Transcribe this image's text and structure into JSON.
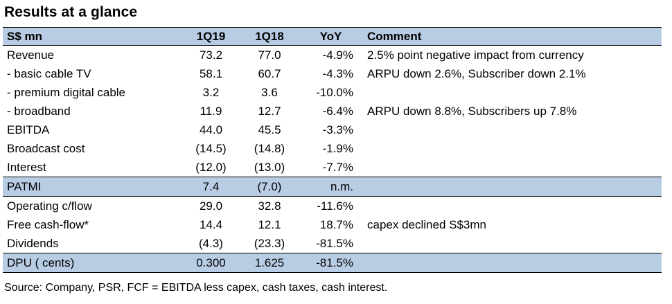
{
  "title": "Results at a glance",
  "table": {
    "headers": [
      "S$ mn",
      "1Q19",
      "1Q18",
      "YoY",
      "Comment"
    ],
    "rows": [
      {
        "label": "Revenue",
        "q19": "73.2",
        "q18": "77.0",
        "yoy": "-4.9%",
        "comment": "2.5% point negative impact from currency"
      },
      {
        "label": " - basic cable TV",
        "q19": "58.1",
        "q18": "60.7",
        "yoy": "-4.3%",
        "comment": "ARPU down 2.6%, Subscriber down 2.1%"
      },
      {
        "label": " - premium digital cable",
        "q19": "3.2",
        "q18": "3.6",
        "yoy": "-10.0%",
        "comment": ""
      },
      {
        "label": " - broadband",
        "q19": "11.9",
        "q18": "12.7",
        "yoy": "-6.4%",
        "comment": "ARPU down 8.8%, Subscribers up 7.8%"
      },
      {
        "label": "EBITDA",
        "q19": "44.0",
        "q18": "45.5",
        "yoy": "-3.3%",
        "comment": ""
      },
      {
        "label": "Broadcast cost",
        "q19": "(14.5)",
        "q18": "(14.8)",
        "yoy": "-1.9%",
        "comment": ""
      },
      {
        "label": "Interest",
        "q19": "(12.0)",
        "q18": "(13.0)",
        "yoy": "-7.7%",
        "comment": ""
      },
      {
        "label": "PATMI",
        "q19": "7.4",
        "q18": "(7.0)",
        "yoy": "n.m.",
        "comment": ""
      },
      {
        "label": "Operating c/flow",
        "q19": "29.0",
        "q18": "32.8",
        "yoy": "-11.6%",
        "comment": ""
      },
      {
        "label": "Free cash-flow*",
        "q19": "14.4",
        "q18": "12.1",
        "yoy": "18.7%",
        "comment": "capex declined S$3mn"
      },
      {
        "label": "Dividends",
        "q19": "(4.3)",
        "q18": "(23.3)",
        "yoy": "-81.5%",
        "comment": ""
      },
      {
        "label": "DPU ( cents)",
        "q19": "0.300",
        "q18": "1.625",
        "yoy": "-81.5%",
        "comment": ""
      }
    ]
  },
  "source": "Source: Company, PSR, FCF = EBITDA less capex, cash taxes, cash interest.",
  "colors": {
    "header_fill": "#b8cce4",
    "highlight_fill": "#b8cce4"
  }
}
